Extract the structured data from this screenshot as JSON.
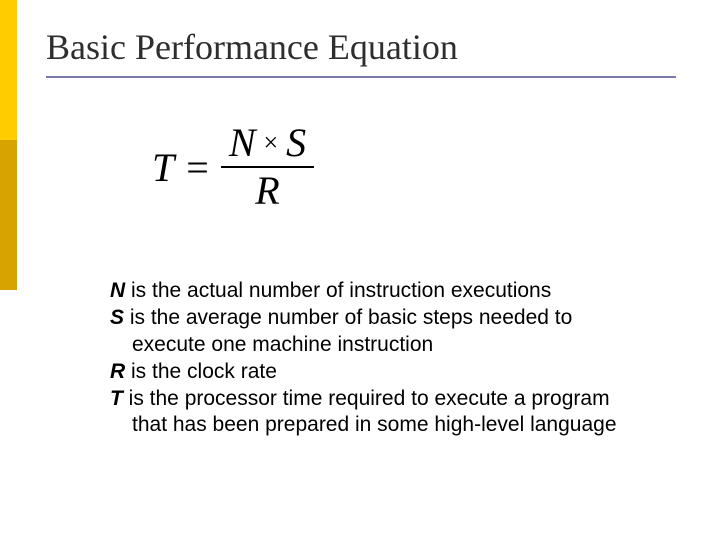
{
  "colors": {
    "accent_top": "#ffcc00",
    "accent_bottom": "#d6a300",
    "underline": "#7a7aa8",
    "title_text": "#2e2e2e",
    "body_text": "#000000",
    "background": "#ffffff"
  },
  "title": "Basic Performance Equation",
  "equation": {
    "lhs": "T",
    "op": "=",
    "numerator_left": "N",
    "mult_sym": "×",
    "numerator_right": "S",
    "denominator": "R"
  },
  "definitions": {
    "n_var": "N",
    "n_text": " is the actual number of instruction executions",
    "s_var": "S",
    "s_text": " is the average number of basic steps needed to",
    "s_cont": "execute one machine instruction",
    "r_var": "R",
    "r_text": " is the clock rate",
    "t_var": "T",
    "t_text": " is the processor time required to execute a program",
    "t_cont": "that has been prepared in some high-level language"
  }
}
